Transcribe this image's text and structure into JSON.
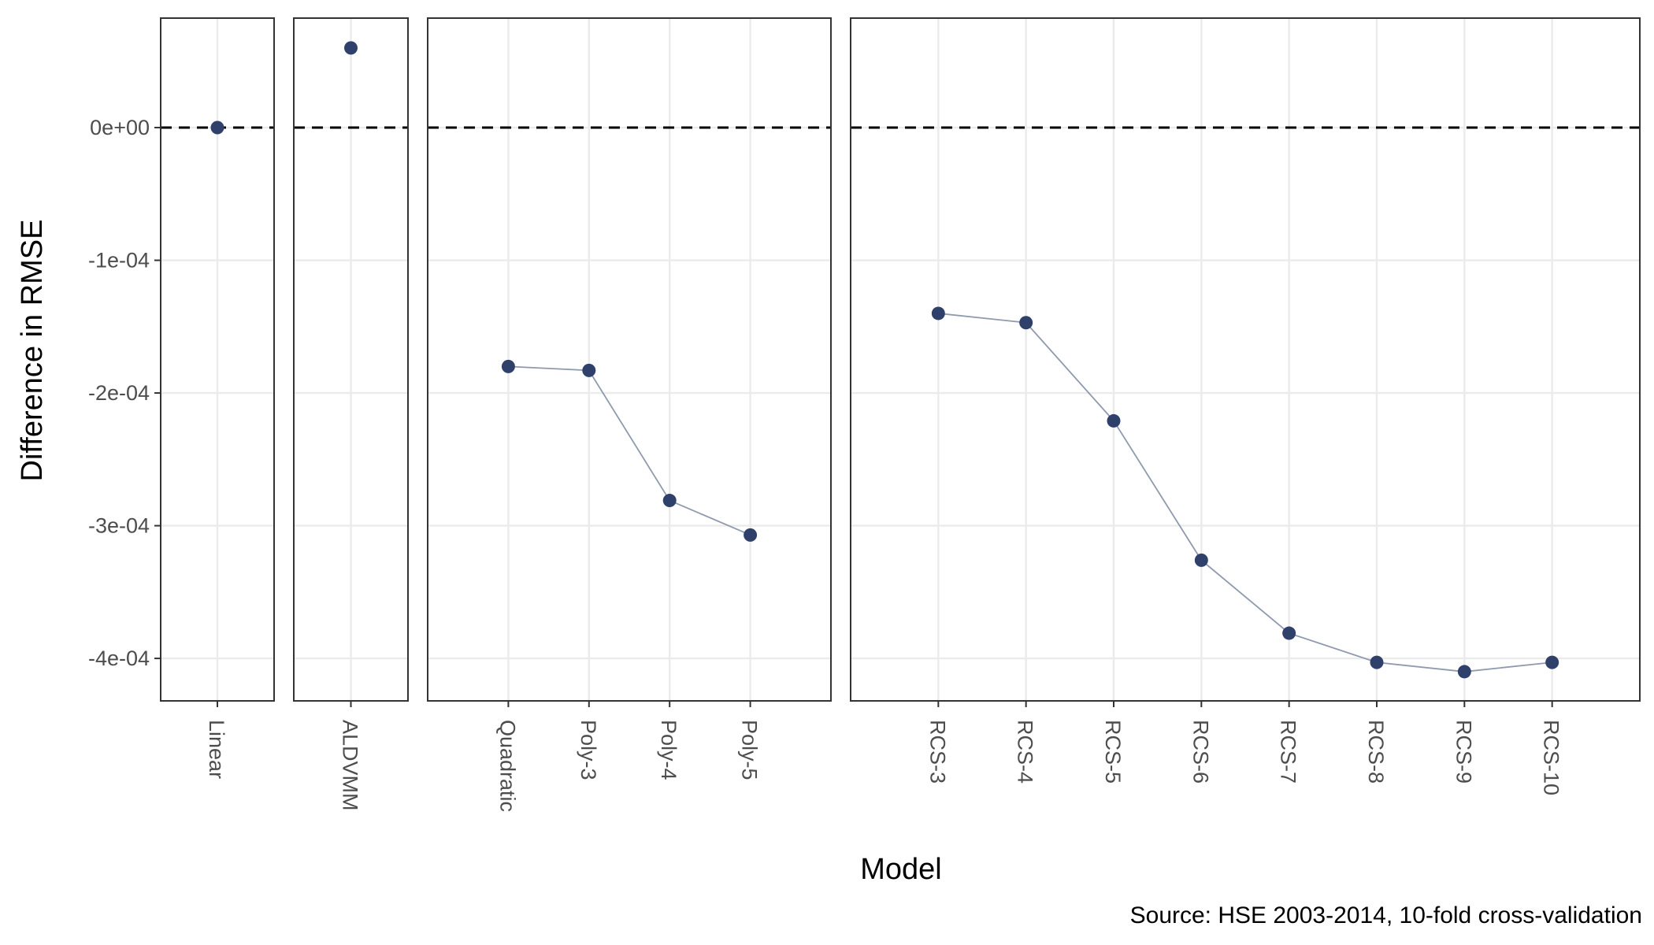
{
  "chart_data": {
    "type": "scatter",
    "ylabel": "Difference in RMSE",
    "xlabel": "Model",
    "caption": "Source: HSE 2003-2014, 10-fold cross-validation",
    "ylim": [
      -0.000432,
      8.25e-05
    ],
    "yticks": [
      0,
      -0.0001,
      -0.0002,
      -0.0003,
      -0.0004
    ],
    "ytick_labels": [
      "0e+00",
      "-1e-04",
      "-2e-04",
      "-3e-04",
      "-4e-04"
    ],
    "reference_line": 0,
    "grid": true,
    "colors": {
      "point": "#2f416b",
      "line": "#8f9aae",
      "reference": "#000000",
      "grid": "#ebebeb",
      "panel_border": "#333333"
    },
    "panels": [
      {
        "name": "",
        "categories": [
          "Linear"
        ],
        "values": [
          0
        ],
        "connected": false
      },
      {
        "name": "",
        "categories": [
          "ALDVMM"
        ],
        "values": [
          6e-05
        ],
        "connected": false
      },
      {
        "name": "",
        "categories": [
          "Quadratic",
          "Poly-3",
          "Poly-4",
          "Poly-5"
        ],
        "values": [
          -0.00018,
          -0.000183,
          -0.000281,
          -0.000307
        ],
        "connected": true
      },
      {
        "name": "",
        "categories": [
          "RCS-3",
          "RCS-4",
          "RCS-5",
          "RCS-6",
          "RCS-7",
          "RCS-8",
          "RCS-9",
          "RCS-10"
        ],
        "values": [
          -0.00014,
          -0.000147,
          -0.000221,
          -0.000326,
          -0.000381,
          -0.000403,
          -0.00041,
          -0.000403
        ],
        "connected": true
      }
    ]
  }
}
